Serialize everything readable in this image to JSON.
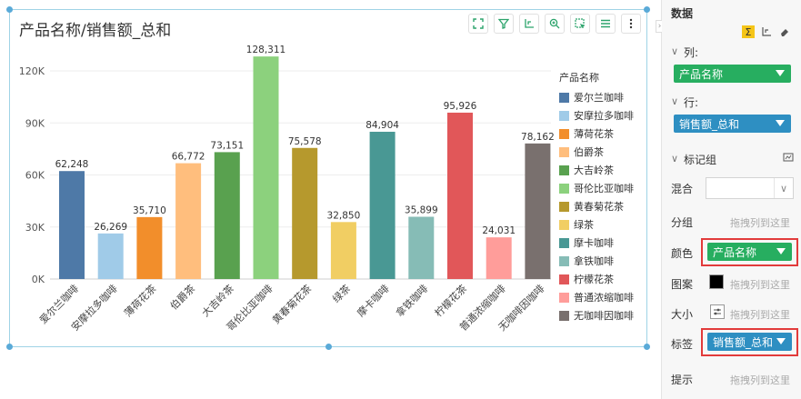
{
  "chart": {
    "title": "产品名称/销售额_总和",
    "legend_title": "产品名称"
  },
  "toolbar": {
    "icons": [
      "fullscreen-icon",
      "filter-icon",
      "axis-icon",
      "zoom-icon",
      "select-icon",
      "list-icon",
      "more-icon"
    ]
  },
  "chart_data": {
    "type": "bar",
    "title": "产品名称/销售额_总和",
    "xlabel": "",
    "ylabel": "",
    "ylim": [
      0,
      130000
    ],
    "yticks": [
      0,
      30000,
      60000,
      90000,
      120000
    ],
    "ytick_labels": [
      "0K",
      "30K",
      "60K",
      "90K",
      "120K"
    ],
    "categories": [
      "爱尔兰咖啡",
      "安摩拉多咖啡",
      "薄荷花茶",
      "伯爵茶",
      "大吉岭茶",
      "哥伦比亚咖啡",
      "黄春菊花茶",
      "绿茶",
      "摩卡咖啡",
      "拿铁咖啡",
      "柠檬花茶",
      "普通浓缩咖啡",
      "无咖啡因咖啡"
    ],
    "values": [
      62248,
      26269,
      35710,
      66772,
      73151,
      128311,
      75578,
      32850,
      84904,
      35899,
      95926,
      24031,
      78162
    ],
    "value_labels": [
      "62,248",
      "26,269",
      "35,710",
      "66,772",
      "73,151",
      "128,311",
      "75,578",
      "32,850",
      "84,904",
      "35,899",
      "95,926",
      "24,031",
      "78,162"
    ],
    "colors": [
      "#4e79a7",
      "#a0cbe8",
      "#f28e2b",
      "#ffbe7d",
      "#59a14f",
      "#8cd17d",
      "#b6992d",
      "#f1ce63",
      "#499894",
      "#86bcb6",
      "#e15759",
      "#ff9d9a",
      "#79706e"
    ],
    "grid": true,
    "legend_position": "right"
  },
  "panel": {
    "section_data": "数据",
    "columns_label": "列:",
    "columns_value": "产品名称",
    "rows_label": "行:",
    "rows_value": "销售额_总和",
    "marks_label": "标记组",
    "mix_label": "混合",
    "group_label": "分组",
    "group_hint": "拖拽列到这里",
    "color_label": "颜色",
    "color_value": "产品名称",
    "pattern_label": "图案",
    "pattern_hint": "拖拽列到这里",
    "size_label": "大小",
    "size_hint": "拖拽列到这里",
    "label_label": "标签",
    "label_value": "销售额_总和",
    "tooltip_label": "提示",
    "tooltip_hint": "拖拽列到这里"
  }
}
